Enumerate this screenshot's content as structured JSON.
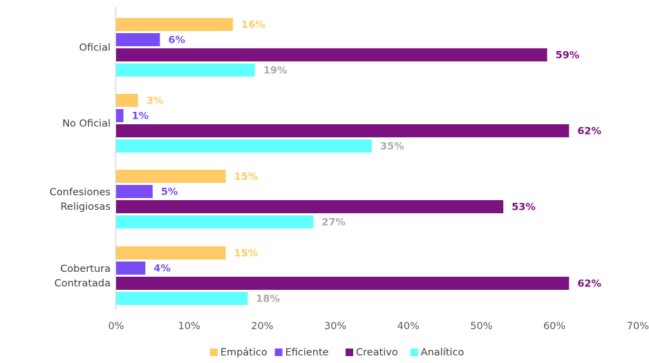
{
  "chart_data": {
    "type": "bar",
    "orientation": "horizontal",
    "categories": [
      [
        "Oficial"
      ],
      [
        "No Oficial"
      ],
      [
        "Confesiones",
        "Religiosas"
      ],
      [
        "Cobertura",
        "Contratada"
      ]
    ],
    "series": [
      {
        "name": "Empático",
        "color": "#FFCA66",
        "values": [
          16,
          3,
          15,
          15
        ],
        "labels": [
          "16%",
          "3%",
          "15%",
          "15%"
        ]
      },
      {
        "name": "Eficiente",
        "color": "#7A4CF3",
        "values": [
          6,
          1,
          5,
          4
        ],
        "labels": [
          "6%",
          "1%",
          "5%",
          "4%"
        ]
      },
      {
        "name": "Creativo",
        "color": "#7B1280",
        "values": [
          59,
          62,
          53,
          62
        ],
        "labels": [
          "59%",
          "62%",
          "53%",
          "62%"
        ]
      },
      {
        "name": "Analítico",
        "color": "#5FFFFF",
        "values": [
          19,
          35,
          27,
          18
        ],
        "labels": [
          "19%",
          "35%",
          "27%",
          "18%"
        ]
      }
    ],
    "label_colors": [
      "#FFCA66",
      "#7A4CF3",
      "#7B1280",
      "#AAAAAA"
    ],
    "x_ticks": [
      "0%",
      "10%",
      "20%",
      "30%",
      "40%",
      "50%",
      "60%",
      "70%"
    ],
    "xlim": [
      0,
      70
    ],
    "grid": false,
    "legend_position": "bottom",
    "title": "",
    "xlabel": "",
    "ylabel": ""
  }
}
